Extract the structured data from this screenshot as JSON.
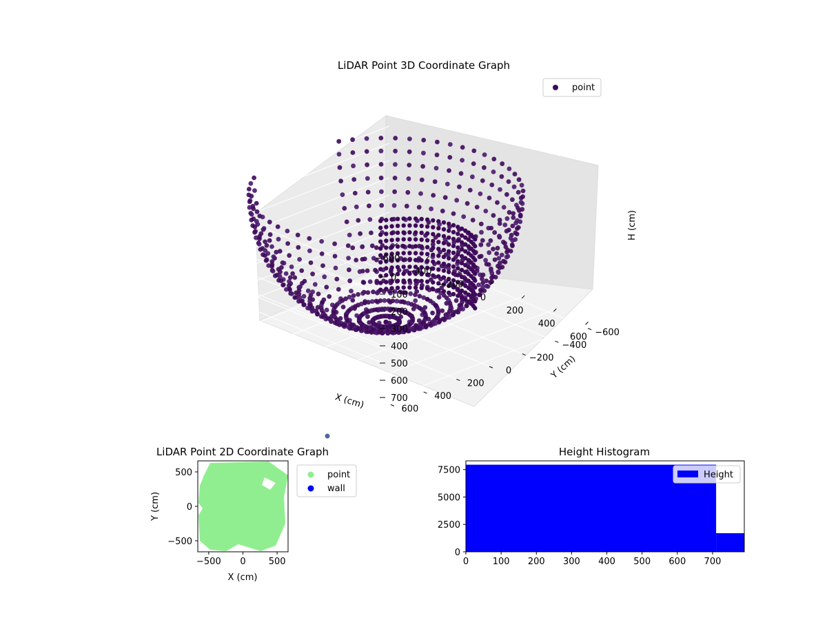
{
  "colors": {
    "point3d": "#3e0a5a",
    "point3d_light": "#4a1a6e",
    "point2d": "#90ee90",
    "wall": "#0000ff",
    "hist": "#0000ff",
    "stray_point": "#4a6a9a"
  },
  "chart_data": [
    {
      "type": "scatter",
      "projection": "3d",
      "title": "LiDAR Point 3D Coordinate Graph",
      "xlabel": "X (cm)",
      "ylabel": "Y (cm)",
      "zlabel": "H (cm)",
      "x_ticks": [
        "−600",
        "−400",
        "−200",
        "0",
        "200",
        "400",
        "600"
      ],
      "y_ticks": [
        "−600",
        "−400",
        "−200",
        "0",
        "200",
        "400",
        "600"
      ],
      "z_ticks": [
        "0",
        "100",
        "200",
        "300",
        "400",
        "500",
        "600",
        "700"
      ],
      "xlim": [
        -650,
        650
      ],
      "ylim": [
        -650,
        650
      ],
      "zlim": [
        0,
        760
      ],
      "z_inverted": true,
      "grid": true,
      "legend": {
        "position": "top-right",
        "entries": [
          "point"
        ]
      },
      "series": [
        {
          "name": "point",
          "shape": "bowl-shaped point cloud; radius ≈ 600 cm, depth ≈ 750 cm, with a partial inner wall and a gap on the near side",
          "radius": 600,
          "depth": 750
        }
      ]
    },
    {
      "type": "scatter",
      "title": "LiDAR Point 2D Coordinate Graph",
      "xlabel": "X (cm)",
      "ylabel": "Y (cm)",
      "x_ticks": [
        "−500",
        "0",
        "500"
      ],
      "y_ticks": [
        "500",
        "0",
        "−500"
      ],
      "xlim": [
        -660,
        660
      ],
      "ylim": [
        -660,
        660
      ],
      "grid": false,
      "legend": {
        "position": "outside right",
        "entries": [
          "point",
          "wall"
        ]
      },
      "series": [
        {
          "name": "point",
          "shape": "filled disc of points, radius ≈ 620 cm"
        },
        {
          "name": "wall",
          "points": []
        }
      ]
    },
    {
      "type": "bar",
      "title": "Height Histogram",
      "xlabel": "",
      "ylabel": "",
      "x_ticks": [
        "0",
        "100",
        "200",
        "300",
        "400",
        "500",
        "600",
        "700"
      ],
      "y_ticks": [
        "0",
        "2500",
        "5000",
        "7500"
      ],
      "xlim": [
        0,
        790
      ],
      "ylim": [
        0,
        8300
      ],
      "legend": {
        "position": "top-right",
        "entries": [
          "Height"
        ]
      },
      "series": [
        {
          "name": "Height",
          "bins": [
            {
              "start": 0,
              "end": 710,
              "count": 7950
            },
            {
              "start": 710,
              "end": 790,
              "count": 1700
            }
          ]
        }
      ]
    }
  ]
}
